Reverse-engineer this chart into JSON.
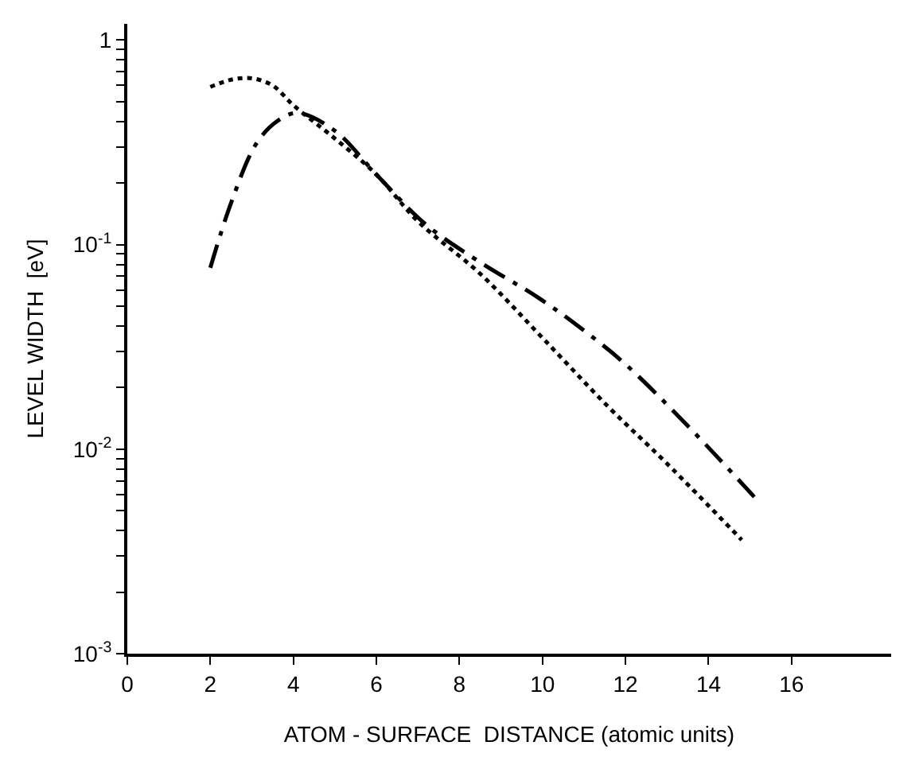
{
  "chart_data": {
    "type": "line",
    "xlabel": "ATOM - SURFACE  DISTANCE (atomic units)",
    "ylabel": "LEVEL WIDTH  [eV]",
    "log": "y",
    "xlim": [
      0,
      18.4
    ],
    "ylim": [
      0.001,
      1.2
    ],
    "xticks": [
      0,
      2,
      4,
      6,
      8,
      10,
      12,
      14,
      16
    ],
    "yticks": [
      {
        "value": 0.001,
        "label": "10$^{-3}$"
      },
      {
        "value": 0.002,
        "label": null
      },
      {
        "value": 0.003,
        "label": null
      },
      {
        "value": 0.004,
        "label": null
      },
      {
        "value": 0.005,
        "label": null
      },
      {
        "value": 0.006,
        "label": null
      },
      {
        "value": 0.007,
        "label": null
      },
      {
        "value": 0.008,
        "label": null
      },
      {
        "value": 0.009,
        "label": null
      },
      {
        "value": 0.01,
        "label": "10$^{-2}$"
      },
      {
        "value": 0.02,
        "label": null
      },
      {
        "value": 0.03,
        "label": null
      },
      {
        "value": 0.04,
        "label": null
      },
      {
        "value": 0.05,
        "label": null
      },
      {
        "value": 0.06,
        "label": null
      },
      {
        "value": 0.07,
        "label": null
      },
      {
        "value": 0.08,
        "label": null
      },
      {
        "value": 0.09,
        "label": null
      },
      {
        "value": 0.1,
        "label": "10$^{-1}$"
      },
      {
        "value": 0.2,
        "label": null
      },
      {
        "value": 0.3,
        "label": null
      },
      {
        "value": 0.4,
        "label": null
      },
      {
        "value": 0.5,
        "label": null
      },
      {
        "value": 0.6,
        "label": null
      },
      {
        "value": 0.7,
        "label": null
      },
      {
        "value": 0.8,
        "label": null
      },
      {
        "value": 0.9,
        "label": null
      },
      {
        "value": 1,
        "label": "1"
      }
    ],
    "marker": "none",
    "series": [
      {
        "color": "#000000",
        "line_style": "dotted",
        "x": [
          2,
          2.5,
          3,
          3.5,
          4,
          5,
          6,
          7,
          8.5,
          10,
          11.6,
          13,
          14.8
        ],
        "values": [
          0.59,
          0.64,
          0.65,
          0.6,
          0.48,
          0.33,
          0.22,
          0.13,
          0.072,
          0.035,
          0.016,
          0.0085,
          0.0036
        ]
      },
      {
        "color": "#000000",
        "line_style": "dashdot",
        "x": [
          2,
          2.5,
          3.1,
          3.6,
          4.1,
          5,
          6,
          7.2,
          8.5,
          9.9,
          11,
          12,
          13.5,
          15.15
        ],
        "values": [
          0.077,
          0.16,
          0.31,
          0.4,
          0.44,
          0.36,
          0.22,
          0.125,
          0.082,
          0.055,
          0.038,
          0.026,
          0.013,
          0.0057
        ]
      }
    ]
  }
}
